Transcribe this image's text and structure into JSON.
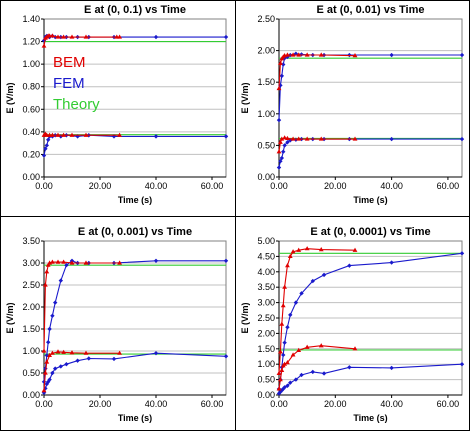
{
  "legend": [
    {
      "label": "BEM",
      "color": "#e00000"
    },
    {
      "label": "FEM",
      "color": "#1a1acc"
    },
    {
      "label": "Theory",
      "color": "#33cc33"
    }
  ],
  "colors": {
    "bem": "#e00000",
    "fem": "#1a1acc",
    "theory": "#33cc33",
    "grid": "#c0c0c0"
  },
  "chart_data": [
    {
      "type": "line",
      "title": "E at (0, 0.1) vs Time",
      "xlabel": "Time (s)",
      "ylabel": "E (V/m)",
      "xlim": [
        0,
        65
      ],
      "ylim": [
        0,
        1.4
      ],
      "xticks": [
        0,
        20,
        40,
        60
      ],
      "xtick_labels": [
        "0.00",
        "20.00",
        "40.00",
        "60.00"
      ],
      "yticks": [
        0,
        0.2,
        0.4,
        0.6,
        0.8,
        1.0,
        1.2,
        1.4
      ],
      "ytick_labels": [
        "0.00",
        "0.20",
        "0.40",
        "0.60",
        "0.80",
        "1.00",
        "1.20",
        "1.40"
      ],
      "grid": "horizontal",
      "legend_position": "top-left",
      "series": [
        {
          "name": "BEM",
          "color": "#e00000",
          "x": [
            0,
            0.5,
            1,
            1.5,
            2,
            3,
            5,
            7,
            10,
            15,
            26,
            27
          ],
          "y": [
            1.16,
            1.23,
            1.24,
            1.25,
            1.25,
            1.25,
            1.24,
            1.24,
            1.24,
            1.24,
            1.24,
            1.24
          ]
        },
        {
          "name": "FEM",
          "color": "#1a1acc",
          "x": [
            0,
            0.5,
            1,
            2,
            3,
            4,
            6,
            8,
            12,
            16,
            25,
            40,
            65
          ],
          "y": [
            1.21,
            1.24,
            1.25,
            1.24,
            1.25,
            1.24,
            1.24,
            1.24,
            1.24,
            1.24,
            1.24,
            1.24,
            1.24
          ]
        },
        {
          "name": "Theory",
          "color": "#33cc33",
          "x": [
            0,
            65
          ],
          "y": [
            1.2,
            1.2
          ]
        },
        {
          "name": "BEM",
          "color": "#e00000",
          "x": [
            0,
            0.5,
            1,
            2,
            3,
            5,
            7,
            10,
            15,
            27
          ],
          "y": [
            0.37,
            0.38,
            0.37,
            0.37,
            0.37,
            0.37,
            0.37,
            0.37,
            0.37,
            0.37
          ]
        },
        {
          "name": "FEM",
          "color": "#1a1acc",
          "x": [
            0,
            0.5,
            1,
            1.5,
            2,
            3,
            4,
            6,
            8,
            12,
            16,
            25,
            40,
            65
          ],
          "y": [
            0.19,
            0.25,
            0.28,
            0.33,
            0.36,
            0.36,
            0.37,
            0.36,
            0.37,
            0.36,
            0.37,
            0.36,
            0.36,
            0.36
          ]
        },
        {
          "name": "Theory",
          "color": "#33cc33",
          "x": [
            0,
            65
          ],
          "y": [
            0.375,
            0.375
          ]
        }
      ]
    },
    {
      "type": "line",
      "title": "E at (0, 0.01) vs Time",
      "xlabel": "Time (s)",
      "ylabel": "E (V/m)",
      "xlim": [
        0,
        65
      ],
      "ylim": [
        0,
        2.5
      ],
      "xticks": [
        0,
        20,
        40,
        60
      ],
      "xtick_labels": [
        "0.00",
        "20.00",
        "40.00",
        "60.00"
      ],
      "yticks": [
        0,
        0.5,
        1.0,
        1.5,
        2.0,
        2.5
      ],
      "ytick_labels": [
        "0.00",
        "0.50",
        "1.00",
        "1.50",
        "2.00",
        "2.50"
      ],
      "grid": "horizontal",
      "series": [
        {
          "name": "BEM",
          "color": "#e00000",
          "x": [
            0,
            0.5,
            1,
            1.5,
            2,
            3,
            5,
            7,
            10,
            15,
            27
          ],
          "y": [
            1.4,
            1.8,
            1.87,
            1.9,
            1.92,
            1.93,
            1.93,
            1.93,
            1.93,
            1.93,
            1.92
          ]
        },
        {
          "name": "FEM",
          "color": "#1a1acc",
          "x": [
            0,
            0.5,
            1,
            1.5,
            2,
            3,
            4,
            6,
            8,
            12,
            16,
            25,
            40,
            65
          ],
          "y": [
            0.9,
            1.45,
            1.6,
            1.78,
            1.88,
            1.9,
            1.93,
            1.95,
            1.94,
            1.93,
            1.93,
            1.93,
            1.93,
            1.93
          ]
        },
        {
          "name": "Theory",
          "color": "#33cc33",
          "x": [
            0,
            65
          ],
          "y": [
            1.88,
            1.88
          ]
        },
        {
          "name": "BEM",
          "color": "#e00000",
          "x": [
            0,
            0.5,
            1,
            2,
            3,
            5,
            7,
            10,
            15,
            27
          ],
          "y": [
            0.4,
            0.55,
            0.6,
            0.62,
            0.61,
            0.6,
            0.6,
            0.6,
            0.6,
            0.6
          ]
        },
        {
          "name": "FEM",
          "color": "#1a1acc",
          "x": [
            0,
            0.5,
            1,
            1.5,
            2,
            3,
            4,
            6,
            8,
            12,
            16,
            25,
            40,
            65
          ],
          "y": [
            0.15,
            0.25,
            0.3,
            0.4,
            0.5,
            0.55,
            0.58,
            0.59,
            0.6,
            0.6,
            0.6,
            0.6,
            0.6,
            0.6
          ]
        },
        {
          "name": "Theory",
          "color": "#33cc33",
          "x": [
            0,
            65
          ],
          "y": [
            0.61,
            0.61
          ]
        }
      ]
    },
    {
      "type": "line",
      "title": "E at (0, 0.001) vs Time",
      "xlabel": "Time (s)",
      "ylabel": "E (V/m)",
      "xlim": [
        0,
        65
      ],
      "ylim": [
        0,
        3.5
      ],
      "xticks": [
        0,
        20,
        40,
        60
      ],
      "xtick_labels": [
        "0.00",
        "20.00",
        "40.00",
        "60.00"
      ],
      "yticks": [
        0,
        0.5,
        1.0,
        1.5,
        2.0,
        2.5,
        3.0,
        3.5
      ],
      "ytick_labels": [
        "0.00",
        "0.50",
        "1.00",
        "1.50",
        "2.00",
        "2.50",
        "3.00",
        "3.50"
      ],
      "grid": "horizontal",
      "series": [
        {
          "name": "BEM",
          "color": "#e00000",
          "x": [
            0,
            0.5,
            1,
            1.5,
            2,
            3,
            5,
            7,
            10,
            15,
            27
          ],
          "y": [
            1.0,
            2.5,
            2.8,
            2.95,
            3.0,
            3.02,
            3.02,
            3.02,
            3.0,
            3.0,
            3.0
          ]
        },
        {
          "name": "FEM",
          "color": "#1a1acc",
          "x": [
            0,
            0.5,
            1,
            1.5,
            2,
            3,
            4,
            6,
            8,
            10,
            12,
            16,
            25,
            40,
            65
          ],
          "y": [
            0.3,
            0.6,
            0.9,
            1.2,
            1.5,
            1.8,
            2.1,
            2.6,
            2.95,
            3.05,
            3.0,
            3.0,
            3.0,
            3.05,
            3.05
          ]
        },
        {
          "name": "Theory",
          "color": "#33cc33",
          "x": [
            0,
            65
          ],
          "y": [
            2.95,
            2.95
          ]
        },
        {
          "name": "BEM",
          "color": "#e00000",
          "x": [
            0,
            0.5,
            1,
            2,
            3,
            5,
            7,
            10,
            15,
            27
          ],
          "y": [
            0.1,
            0.5,
            0.75,
            0.9,
            0.95,
            0.98,
            0.97,
            0.96,
            0.95,
            0.95
          ]
        },
        {
          "name": "FEM",
          "color": "#1a1acc",
          "x": [
            0,
            0.5,
            1,
            1.5,
            2,
            3,
            4,
            6,
            8,
            12,
            16,
            25,
            40,
            65
          ],
          "y": [
            0.05,
            0.15,
            0.25,
            0.3,
            0.35,
            0.5,
            0.6,
            0.65,
            0.7,
            0.78,
            0.83,
            0.82,
            0.95,
            0.88
          ]
        },
        {
          "name": "Theory",
          "color": "#33cc33",
          "x": [
            0,
            65
          ],
          "y": [
            0.93,
            0.93
          ]
        }
      ]
    },
    {
      "type": "line",
      "title": "E at (0, 0.0001) vs Time",
      "xlabel": "Time (s)",
      "ylabel": "E (V/m)",
      "xlim": [
        0,
        65
      ],
      "ylim": [
        0,
        5.0
      ],
      "xticks": [
        0,
        20,
        40,
        60
      ],
      "xtick_labels": [
        "0.00",
        "20.00",
        "40.00",
        "60.00"
      ],
      "yticks": [
        0,
        0.5,
        1.0,
        1.5,
        2.0,
        2.5,
        3.0,
        3.5,
        4.0,
        4.5,
        5.0
      ],
      "ytick_labels": [
        "0.00",
        "0.50",
        "1.00",
        "1.50",
        "2.00",
        "2.50",
        "3.00",
        "3.50",
        "4.00",
        "4.50",
        "5.00"
      ],
      "grid": "horizontal",
      "series": [
        {
          "name": "BEM",
          "color": "#e00000",
          "x": [
            0,
            0.5,
            1,
            1.5,
            2,
            3,
            4,
            5,
            7,
            10,
            15,
            27
          ],
          "y": [
            0.7,
            1.4,
            2.3,
            2.9,
            3.5,
            4.2,
            4.5,
            4.65,
            4.7,
            4.75,
            4.72,
            4.7
          ]
        },
        {
          "name": "FEM",
          "color": "#1a1acc",
          "x": [
            0,
            0.5,
            1,
            1.5,
            2,
            3,
            4,
            6,
            8,
            12,
            16,
            25,
            40,
            65
          ],
          "y": [
            0.2,
            0.5,
            0.9,
            1.3,
            1.7,
            2.2,
            2.6,
            3.0,
            3.3,
            3.7,
            3.9,
            4.2,
            4.3,
            4.6
          ]
        },
        {
          "name": "Theory",
          "color": "#33cc33",
          "x": [
            0,
            65
          ],
          "y": [
            4.6,
            4.6
          ]
        },
        {
          "name": "BEM",
          "color": "#e00000",
          "x": [
            0,
            0.5,
            1,
            1.5,
            2,
            3,
            5,
            7,
            10,
            15,
            27
          ],
          "y": [
            0.2,
            0.5,
            0.8,
            0.95,
            1.0,
            1.05,
            1.3,
            1.45,
            1.55,
            1.6,
            1.5
          ]
        },
        {
          "name": "FEM",
          "color": "#1a1acc",
          "x": [
            0,
            0.5,
            1,
            1.5,
            2,
            3,
            4,
            6,
            8,
            12,
            16,
            25,
            40,
            65
          ],
          "y": [
            0.05,
            0.1,
            0.15,
            0.2,
            0.25,
            0.3,
            0.4,
            0.5,
            0.65,
            0.75,
            0.7,
            0.9,
            0.88,
            1.0
          ]
        },
        {
          "name": "Theory",
          "color": "#33cc33",
          "x": [
            0,
            65
          ],
          "y": [
            1.46,
            1.46
          ]
        }
      ]
    }
  ]
}
